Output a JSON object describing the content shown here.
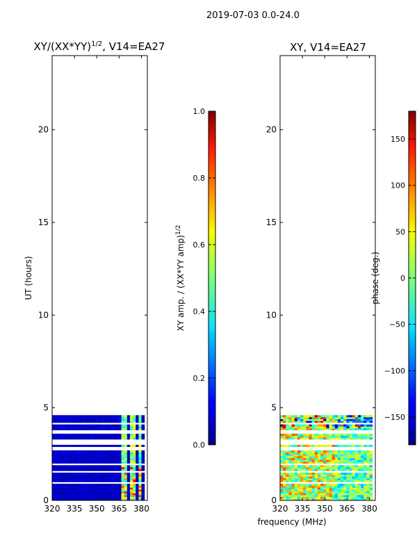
{
  "suptitle": "2019-07-03 0.0-24.0",
  "colors": {
    "plot_bg": "#ffffff",
    "axis": "#000000",
    "band_low": "#00008f",
    "band_dark": "#0000b0",
    "band_mid": "#0044ff",
    "highlight": "#7fffff"
  },
  "chart_data": [
    {
      "type": "heatmap",
      "title": "XY/(XX*YY)^1/2, V14=EA27",
      "title_main": "XY/(XX*YY)",
      "title_exp": "1/2",
      "title_tail": ", V14=EA27",
      "xlabel": "",
      "ylabel": "UT (hours)",
      "xlim": [
        320,
        384
      ],
      "ylim": [
        0,
        24
      ],
      "xticks": [
        320,
        335,
        350,
        365,
        380
      ],
      "yticks": [
        0,
        5,
        10,
        15,
        20
      ],
      "data_hours": [
        0,
        4.6
      ],
      "colormap": "jet",
      "colorbar": {
        "label": "XY amp. / (XX*YY amp)^1/2",
        "label_main": "XY amp. / (XX*YY amp)",
        "label_exp": "1/2",
        "range": [
          0.0,
          1.0
        ],
        "ticks": [
          "0.0",
          "0.2",
          "0.4",
          "0.6",
          "0.8",
          "1.0"
        ]
      }
    },
    {
      "type": "heatmap",
      "title": "XY, V14=EA27",
      "xlabel": "frequency (MHz)",
      "ylabel": "",
      "xlim": [
        320,
        384
      ],
      "ylim": [
        0,
        24
      ],
      "xticks": [
        320,
        335,
        350,
        365,
        380
      ],
      "yticks": [
        0,
        5,
        10,
        15,
        20
      ],
      "data_hours": [
        0,
        4.6
      ],
      "colormap": "jet",
      "colorbar": {
        "label": "phase (deg.)",
        "range": [
          -180,
          180
        ],
        "ticks": [
          "−150",
          "−100",
          "−50",
          "0",
          "50",
          "100",
          "150"
        ]
      }
    }
  ]
}
